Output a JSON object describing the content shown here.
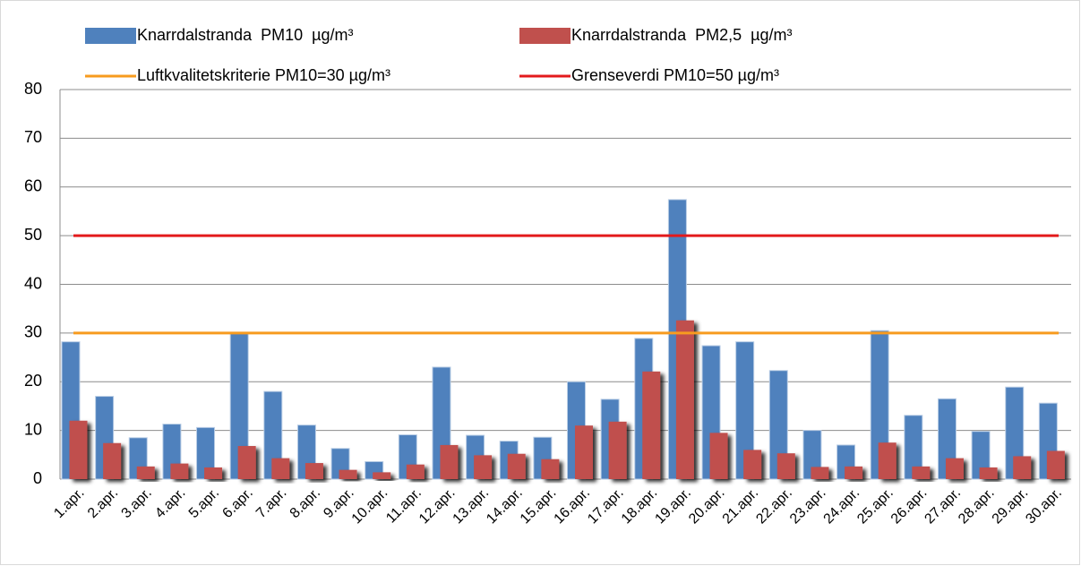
{
  "chart_data": {
    "type": "bar",
    "categories": [
      "1.apr.",
      "2.apr.",
      "3.apr.",
      "4.apr.",
      "5.apr.",
      "6.apr.",
      "7.apr.",
      "8.apr.",
      "9.apr.",
      "10.apr.",
      "11.apr.",
      "12.apr.",
      "13.apr.",
      "14.apr.",
      "15.apr.",
      "16.apr.",
      "17.apr.",
      "18.apr.",
      "19.apr.",
      "20.apr.",
      "21.apr.",
      "22.apr.",
      "23.apr.",
      "24.apr.",
      "25.apr.",
      "26.apr.",
      "27.apr.",
      "28.apr.",
      "29.apr.",
      "30.apr."
    ],
    "series": [
      {
        "name": "Knarrdalstranda  PM10  µg/m³",
        "color": "#4f81bd",
        "values": [
          28.2,
          17,
          8.5,
          11.3,
          10.6,
          30,
          18,
          11.1,
          6.3,
          3.6,
          9.1,
          23,
          9,
          7.8,
          8.6,
          20,
          16.4,
          28.9,
          57.4,
          27.4,
          28.2,
          22.3,
          10,
          7,
          30.5,
          13.1,
          16.5,
          9.8,
          18.9,
          15.6
        ]
      },
      {
        "name": "Knarrdalstranda  PM2,5  µg/m³",
        "color": "#c0504d",
        "values": [
          12,
          7.4,
          2.6,
          3.2,
          2.4,
          6.8,
          4.3,
          3.3,
          1.9,
          1.4,
          3,
          7,
          4.9,
          5.2,
          4.1,
          11,
          11.8,
          22.1,
          32.6,
          9.5,
          6,
          5.3,
          2.5,
          2.6,
          7.5,
          2.6,
          4.3,
          2.4,
          4.7,
          5.8
        ]
      }
    ],
    "reference_lines": [
      {
        "name": "Luftkvalitetskriterie PM10=30 µg/m³",
        "color": "#f79b1f",
        "value": 30
      },
      {
        "name": "Grenseverdi PM10=50 µg/m³",
        "color": "#e31a1c",
        "value": 50
      }
    ],
    "ylim": [
      0,
      80
    ],
    "yticks": [
      0,
      10,
      20,
      30,
      40,
      50,
      60,
      70,
      80
    ],
    "grid": true
  }
}
